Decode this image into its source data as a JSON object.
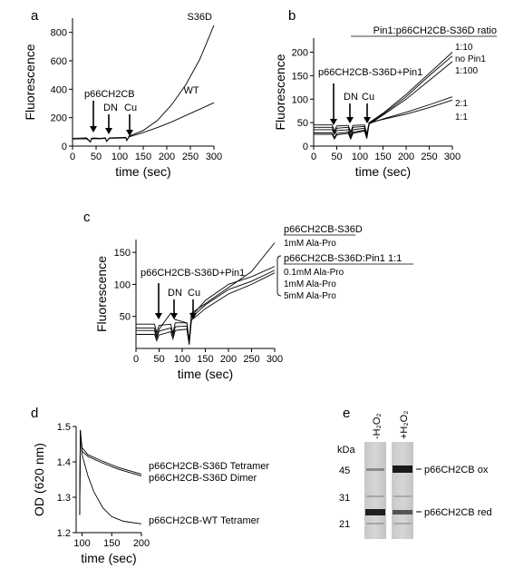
{
  "figure": {
    "panels": [
      "a",
      "b",
      "c",
      "d",
      "e"
    ]
  },
  "chart_data": [
    {
      "panel": "a",
      "type": "line",
      "xlabel": "time (sec)",
      "ylabel": "Fluorescence",
      "xlim": [
        0,
        300
      ],
      "ylim": [
        0,
        900
      ],
      "xticks": [
        0,
        50,
        100,
        150,
        200,
        250,
        300
      ],
      "yticks": [
        0,
        200,
        400,
        600,
        800
      ],
      "annotations": [
        "p66CH2CB",
        "DN",
        "Cu"
      ],
      "series": [
        {
          "name": "S36D",
          "x": [
            0,
            30,
            38,
            40,
            45,
            60,
            70,
            72,
            78,
            100,
            113,
            115,
            120,
            150,
            180,
            210,
            240,
            270,
            300
          ],
          "y": [
            55,
            58,
            30,
            55,
            57,
            55,
            58,
            35,
            58,
            60,
            62,
            40,
            70,
            110,
            180,
            290,
            430,
            610,
            850
          ]
        },
        {
          "name": "WT",
          "x": [
            0,
            30,
            38,
            40,
            45,
            60,
            70,
            72,
            78,
            100,
            113,
            115,
            120,
            150,
            180,
            210,
            240,
            270,
            300
          ],
          "y": [
            50,
            52,
            28,
            50,
            52,
            52,
            55,
            32,
            55,
            56,
            58,
            38,
            65,
            95,
            130,
            170,
            215,
            260,
            305
          ]
        }
      ]
    },
    {
      "panel": "b",
      "type": "line",
      "title": "Pin1:p66CH2CB-S36D ratio",
      "xlabel": "time (sec)",
      "ylabel": "Fluorescence",
      "xlim": [
        0,
        300
      ],
      "ylim": [
        0,
        230
      ],
      "xticks": [
        0,
        50,
        100,
        150,
        200,
        250,
        300
      ],
      "yticks": [
        0,
        50,
        100,
        150,
        200
      ],
      "annotations": [
        "p66CH2CB-S36D+Pin1",
        "DN",
        "Cu"
      ],
      "series": [
        {
          "name": "1:10",
          "x": [
            0,
            40,
            45,
            50,
            75,
            80,
            85,
            110,
            115,
            120,
            150,
            200,
            250,
            300
          ],
          "y": [
            35,
            35,
            25,
            33,
            35,
            22,
            35,
            38,
            20,
            50,
            70,
            110,
            155,
            200
          ]
        },
        {
          "name": "no Pin1",
          "x": [
            0,
            40,
            45,
            50,
            75,
            80,
            85,
            110,
            115,
            120,
            150,
            200,
            250,
            300
          ],
          "y": [
            28,
            28,
            18,
            27,
            30,
            18,
            30,
            34,
            18,
            48,
            68,
            105,
            150,
            192
          ]
        },
        {
          "name": "1:100",
          "x": [
            0,
            40,
            45,
            50,
            75,
            80,
            85,
            110,
            115,
            120,
            150,
            200,
            250,
            300
          ],
          "y": [
            25,
            25,
            15,
            24,
            27,
            15,
            27,
            32,
            16,
            47,
            66,
            100,
            140,
            180
          ]
        },
        {
          "name": "2:1",
          "x": [
            0,
            40,
            45,
            50,
            75,
            80,
            85,
            110,
            115,
            120,
            150,
            200,
            250,
            300
          ],
          "y": [
            40,
            40,
            28,
            38,
            40,
            28,
            40,
            42,
            24,
            48,
            58,
            72,
            88,
            105
          ]
        },
        {
          "name": "1:1",
          "x": [
            0,
            40,
            45,
            50,
            75,
            80,
            85,
            110,
            115,
            120,
            150,
            200,
            250,
            300
          ],
          "y": [
            45,
            45,
            32,
            43,
            44,
            30,
            44,
            45,
            26,
            50,
            57,
            68,
            82,
            98
          ]
        }
      ]
    },
    {
      "panel": "c",
      "type": "line",
      "xlabel": "time (sec)",
      "ylabel": "Fluorescence",
      "xlim": [
        0,
        300
      ],
      "ylim": [
        0,
        170
      ],
      "xticks": [
        0,
        50,
        100,
        150,
        200,
        250,
        300
      ],
      "yticks": [
        50,
        100,
        150
      ],
      "annotations": [
        "p66CH2CB-S36D+Pin1",
        "DN",
        "Cu"
      ],
      "legend": {
        "group1_title": "p66CH2CB-S36D",
        "group1_items": [
          "1mM Ala-Pro"
        ],
        "group2_title": "p66CH2CB-S36D:Pin1 1:1",
        "group2_items": [
          "0.1mM Ala-Pro",
          "1mM Ala-Pro",
          "5mM Ala-Pro"
        ]
      },
      "series": [
        {
          "name": "1mM Ala-Pro",
          "x": [
            0,
            40,
            45,
            50,
            75,
            80,
            85,
            110,
            115,
            120,
            150,
            200,
            250,
            300
          ],
          "y": [
            38,
            38,
            25,
            36,
            38,
            24,
            40,
            40,
            12,
            55,
            70,
            95,
            120,
            165
          ]
        },
        {
          "name": "0.1mM Ala-Pro",
          "x": [
            0,
            40,
            45,
            50,
            75,
            80,
            85,
            110,
            115,
            120,
            150,
            200,
            250,
            300
          ],
          "y": [
            32,
            32,
            20,
            30,
            55,
            50,
            45,
            40,
            10,
            50,
            75,
            100,
            112,
            128
          ]
        },
        {
          "name": "1mM Ala-Pro",
          "x": [
            0,
            40,
            45,
            50,
            75,
            80,
            85,
            110,
            115,
            120,
            150,
            200,
            250,
            300
          ],
          "y": [
            28,
            28,
            16,
            27,
            32,
            20,
            34,
            35,
            8,
            48,
            68,
            92,
            105,
            122
          ]
        },
        {
          "name": "5mM Ala-Pro",
          "x": [
            0,
            40,
            45,
            50,
            75,
            80,
            85,
            110,
            115,
            120,
            150,
            200,
            250,
            300
          ],
          "y": [
            22,
            22,
            12,
            21,
            26,
            15,
            28,
            30,
            6,
            44,
            62,
            85,
            100,
            118
          ]
        }
      ]
    },
    {
      "panel": "d",
      "type": "line",
      "xlabel": "time (sec)",
      "ylabel": "OD (620 nm)",
      "xlim": [
        90,
        200
      ],
      "ylim": [
        1.2,
        1.5
      ],
      "xticks": [
        100,
        150,
        200
      ],
      "yticks": [
        1.2,
        1.3,
        1.4,
        1.5
      ],
      "series": [
        {
          "name": "p66CH2CB-S36D Tetramer",
          "x": [
            96,
            97,
            100,
            110,
            130,
            160,
            200
          ],
          "y": [
            1.25,
            1.49,
            1.44,
            1.42,
            1.405,
            1.385,
            1.365
          ]
        },
        {
          "name": "p66CH2CB-S36D Dimer",
          "x": [
            96,
            97,
            100,
            110,
            130,
            160,
            200
          ],
          "y": [
            1.25,
            1.48,
            1.43,
            1.415,
            1.4,
            1.38,
            1.36
          ]
        },
        {
          "name": "p66CH2CB-WT Tetramer",
          "x": [
            96,
            97,
            100,
            110,
            120,
            135,
            150,
            170,
            200
          ],
          "y": [
            1.25,
            1.49,
            1.42,
            1.36,
            1.315,
            1.27,
            1.245,
            1.232,
            1.225
          ]
        }
      ]
    }
  ],
  "gel": {
    "panel": "e",
    "unit": "kDa",
    "markers": [
      "45",
      "31",
      "21"
    ],
    "lanes": [
      "-H₂O₂",
      "+H₂O₂"
    ],
    "bands": [
      "p66CH2CB ox",
      "p66CH2CB red"
    ]
  }
}
